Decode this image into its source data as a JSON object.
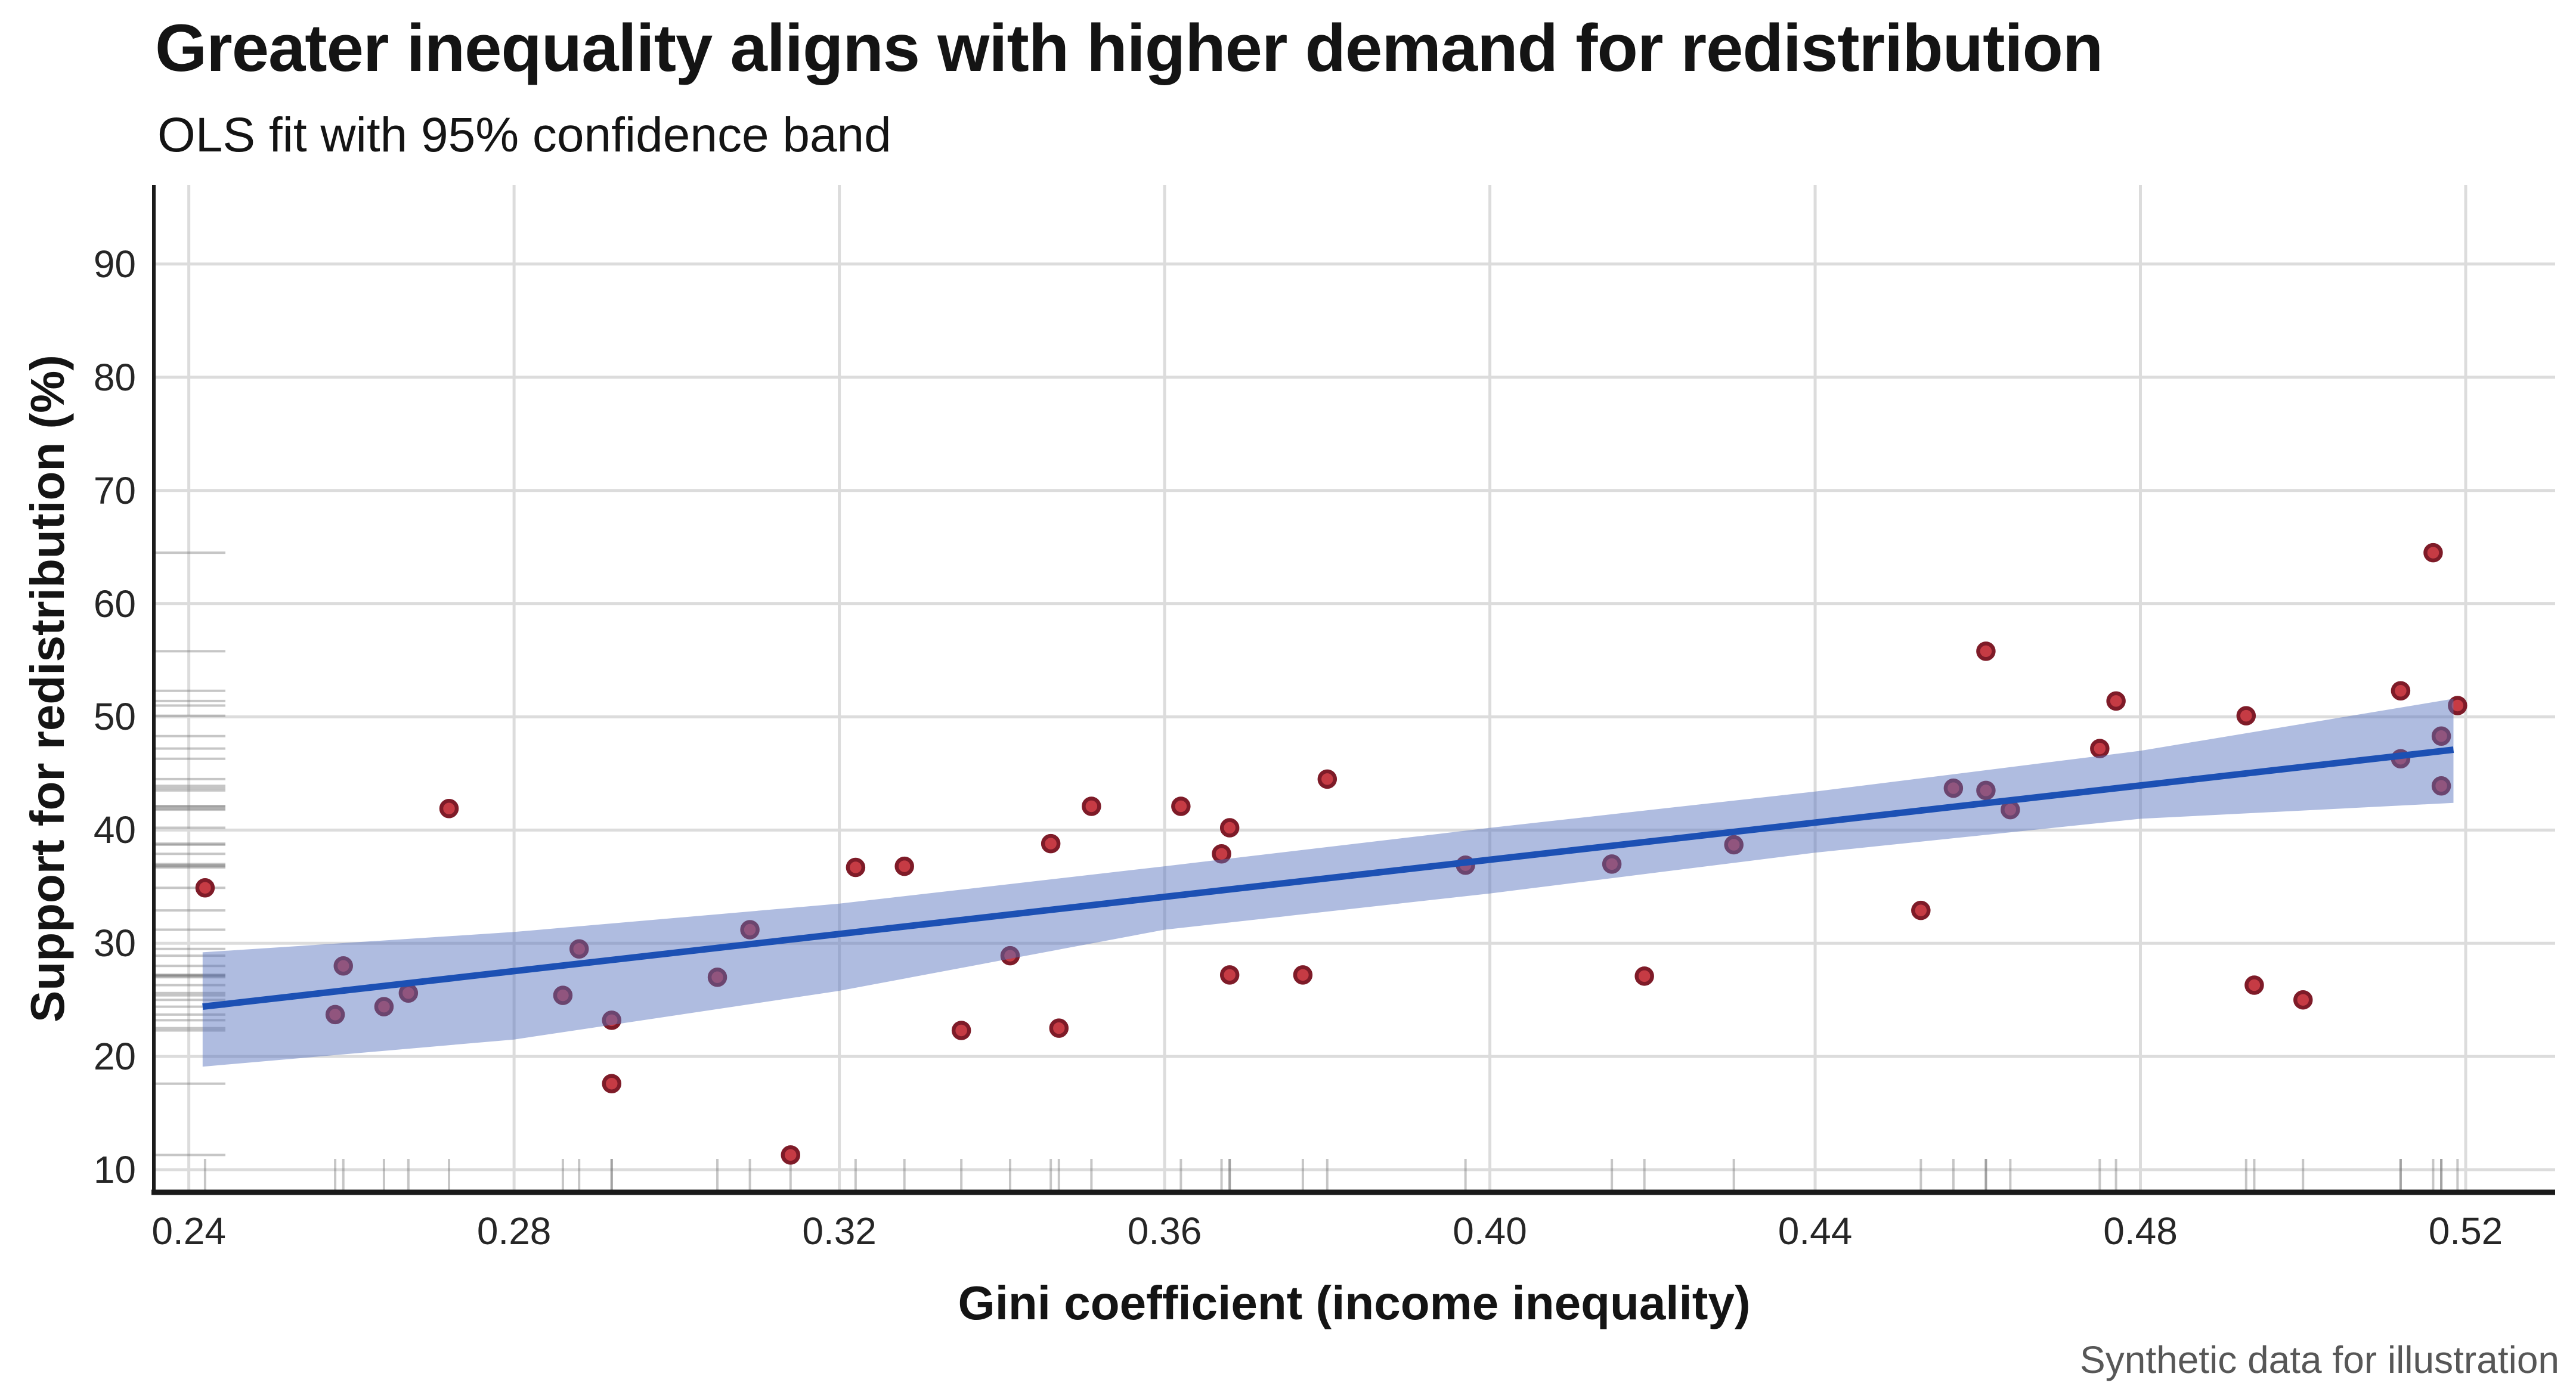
{
  "header": {
    "title": "Greater inequality aligns with higher demand for redistribution",
    "subtitle": "OLS fit with 95% confidence band"
  },
  "caption": "Synthetic data for illustration",
  "chart_data": {
    "type": "scatter",
    "title": "Greater inequality aligns with higher demand for redistribution",
    "subtitle": "OLS fit with 95% confidence band",
    "xlabel": "Gini coefficient (income inequality)",
    "ylabel": "Support for redistribution (%)",
    "caption": "Synthetic data for illustration",
    "xlim": [
      0.2357,
      0.531
    ],
    "ylim": [
      8.0,
      97.0
    ],
    "xticks": [
      0.24,
      0.28,
      0.32,
      0.36,
      0.4,
      0.44,
      0.48,
      0.52
    ],
    "xtick_labels": [
      "0.24",
      "0.28",
      "0.32",
      "0.36",
      "0.40",
      "0.44",
      "0.48",
      "0.52"
    ],
    "yticks": [
      10,
      20,
      30,
      40,
      50,
      60,
      70,
      80,
      90
    ],
    "ytick_labels": [
      "10",
      "20",
      "30",
      "40",
      "50",
      "60",
      "70",
      "80",
      "90"
    ],
    "grid": true,
    "legend": "none",
    "points": [
      [
        0.242,
        34.9
      ],
      [
        0.258,
        23.7
      ],
      [
        0.259,
        28.0
      ],
      [
        0.264,
        24.4
      ],
      [
        0.267,
        25.6
      ],
      [
        0.272,
        41.9
      ],
      [
        0.286,
        25.4
      ],
      [
        0.288,
        29.5
      ],
      [
        0.292,
        23.2
      ],
      [
        0.292,
        17.6
      ],
      [
        0.305,
        27.0
      ],
      [
        0.309,
        31.2
      ],
      [
        0.314,
        11.3
      ],
      [
        0.322,
        36.7
      ],
      [
        0.328,
        36.8
      ],
      [
        0.335,
        22.3
      ],
      [
        0.341,
        28.9
      ],
      [
        0.346,
        38.8
      ],
      [
        0.347,
        22.5
      ],
      [
        0.351,
        42.1
      ],
      [
        0.362,
        42.1
      ],
      [
        0.367,
        37.9
      ],
      [
        0.368,
        40.2
      ],
      [
        0.368,
        27.2
      ],
      [
        0.377,
        27.2
      ],
      [
        0.38,
        44.5
      ],
      [
        0.397,
        36.9
      ],
      [
        0.415,
        37.0
      ],
      [
        0.419,
        27.1
      ],
      [
        0.43,
        38.7
      ],
      [
        0.453,
        32.9
      ],
      [
        0.457,
        43.7
      ],
      [
        0.461,
        55.8
      ],
      [
        0.461,
        43.5
      ],
      [
        0.464,
        41.8
      ],
      [
        0.475,
        47.2
      ],
      [
        0.477,
        51.4
      ],
      [
        0.493,
        50.1
      ],
      [
        0.494,
        26.3
      ],
      [
        0.5,
        25.0
      ],
      [
        0.512,
        52.3
      ],
      [
        0.512,
        46.3
      ],
      [
        0.516,
        64.5
      ],
      [
        0.517,
        48.3
      ],
      [
        0.517,
        43.9
      ],
      [
        0.519,
        51.0
      ]
    ],
    "trend": {
      "label": "OLS fit",
      "slope": 82.0,
      "intercept": 4.58,
      "x_start": 0.2417,
      "x_end": 0.5185
    },
    "band": {
      "label": "95% confidence band",
      "vertices": [
        [
          0.2417,
          19.1,
          29.2
        ],
        [
          0.28,
          21.5,
          31.0
        ],
        [
          0.32,
          25.8,
          33.5
        ],
        [
          0.36,
          31.2,
          36.8
        ],
        [
          0.4,
          34.4,
          40.2
        ],
        [
          0.44,
          38.0,
          43.4
        ],
        [
          0.48,
          41.0,
          47.0
        ],
        [
          0.5185,
          42.4,
          51.6
        ]
      ]
    },
    "rug": {
      "x": true,
      "y": true
    },
    "colors": {
      "band": "rgba(88,116,190,0.48)",
      "line": "#1C50B4",
      "point_fill": "#C63B44",
      "point_edge": "#7E1B28",
      "grid": "#DCDCDC",
      "spine": "#1A1A1A",
      "rug": "rgba(105,105,105,0.38)",
      "tick_label": "#262626",
      "text": "#141414",
      "caption": "#575757"
    }
  }
}
